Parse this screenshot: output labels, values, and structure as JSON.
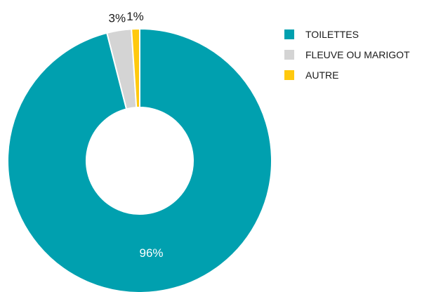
{
  "chart_data": {
    "type": "pie",
    "donut": true,
    "legend_position": "top-right",
    "slices": [
      {
        "label": "TOILETTES",
        "value": 96,
        "display": "96%",
        "color": "#00A0AF"
      },
      {
        "label": "FLEUVE OU MARIGOT",
        "value": 3,
        "display": "3%",
        "color": "#D4D4D4"
      },
      {
        "label": "AUTRE",
        "value": 1,
        "display": "1%",
        "color": "#FFC90E"
      }
    ]
  }
}
